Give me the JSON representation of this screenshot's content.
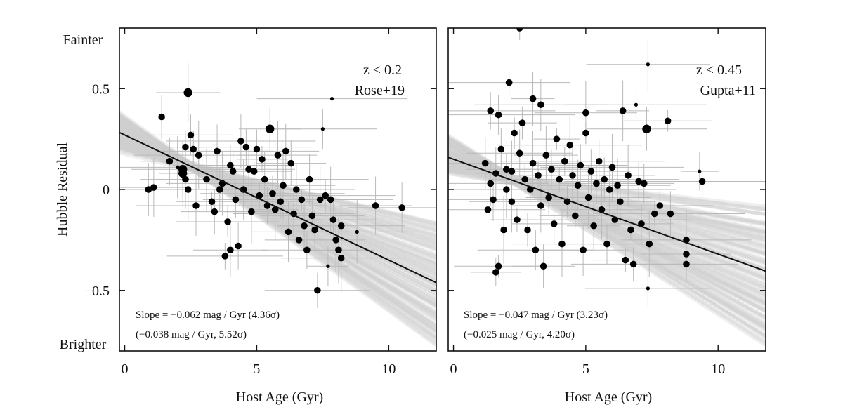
{
  "chart_data": [
    {
      "type": "scatter",
      "redshift_label": "z < 0.2",
      "sample_label": "Rose+19",
      "xlabel": "Host Age (Gyr)",
      "ylabel": "Hubble Residual",
      "y_top_label": "Fainter",
      "y_bottom_label": "Brighter",
      "xlim": [
        -0.2,
        11.8
      ],
      "ylim": [
        -0.8,
        0.8
      ],
      "xticks": [
        0,
        5,
        10
      ],
      "xtick_labels": [
        "0",
        "5",
        "10"
      ],
      "yticks": [
        0.5,
        0,
        -0.5
      ],
      "ytick_labels": [
        "0.5",
        "0",
        "−0.5"
      ],
      "slope_text": "Slope = −0.062 mag / Gyr (4.36σ)",
      "slope_alt_text": "(−0.038 mag / Gyr, 5.52σ)",
      "fit": {
        "slope": -0.062,
        "intercept": 0.27
      },
      "band": {
        "slope_low": -0.095,
        "slope_high": -0.03,
        "intercept_low": 0.19,
        "intercept_high": 0.35
      },
      "points": [
        {
          "x": 0.9,
          "y": 0.0,
          "s": "m"
        },
        {
          "x": 1.1,
          "y": 0.01,
          "s": "m"
        },
        {
          "x": 1.4,
          "y": 0.36,
          "s": "m"
        },
        {
          "x": 1.7,
          "y": 0.14,
          "s": "m"
        },
        {
          "x": 2.0,
          "y": 0.11,
          "s": "s"
        },
        {
          "x": 2.2,
          "y": 0.1,
          "s": "l"
        },
        {
          "x": 2.2,
          "y": 0.08,
          "s": "l"
        },
        {
          "x": 2.3,
          "y": 0.21,
          "s": "m"
        },
        {
          "x": 2.3,
          "y": 0.05,
          "s": "m"
        },
        {
          "x": 2.4,
          "y": 0.0,
          "s": "m"
        },
        {
          "x": 2.4,
          "y": 0.48,
          "s": "l"
        },
        {
          "x": 2.5,
          "y": 0.27,
          "s": "m"
        },
        {
          "x": 2.6,
          "y": 0.2,
          "s": "m"
        },
        {
          "x": 2.7,
          "y": -0.08,
          "s": "m"
        },
        {
          "x": 2.8,
          "y": 0.17,
          "s": "m"
        },
        {
          "x": 3.1,
          "y": 0.05,
          "s": "m"
        },
        {
          "x": 3.3,
          "y": -0.06,
          "s": "m"
        },
        {
          "x": 3.4,
          "y": -0.11,
          "s": "m"
        },
        {
          "x": 3.5,
          "y": 0.19,
          "s": "m"
        },
        {
          "x": 3.6,
          "y": 0.0,
          "s": "m"
        },
        {
          "x": 3.7,
          "y": 0.03,
          "s": "m"
        },
        {
          "x": 3.8,
          "y": -0.33,
          "s": "m"
        },
        {
          "x": 3.9,
          "y": -0.16,
          "s": "m"
        },
        {
          "x": 4.0,
          "y": 0.12,
          "s": "m"
        },
        {
          "x": 4.0,
          "y": -0.3,
          "s": "m"
        },
        {
          "x": 4.1,
          "y": 0.09,
          "s": "m"
        },
        {
          "x": 4.2,
          "y": -0.05,
          "s": "m"
        },
        {
          "x": 4.3,
          "y": -0.28,
          "s": "m"
        },
        {
          "x": 4.4,
          "y": 0.24,
          "s": "m"
        },
        {
          "x": 4.5,
          "y": 0.0,
          "s": "m"
        },
        {
          "x": 4.6,
          "y": 0.21,
          "s": "m"
        },
        {
          "x": 4.7,
          "y": 0.1,
          "s": "m"
        },
        {
          "x": 4.8,
          "y": -0.11,
          "s": "m"
        },
        {
          "x": 4.9,
          "y": 0.09,
          "s": "m"
        },
        {
          "x": 5.0,
          "y": 0.2,
          "s": "m"
        },
        {
          "x": 5.1,
          "y": -0.03,
          "s": "m"
        },
        {
          "x": 5.2,
          "y": 0.15,
          "s": "m"
        },
        {
          "x": 5.3,
          "y": 0.05,
          "s": "m"
        },
        {
          "x": 5.4,
          "y": -0.08,
          "s": "m"
        },
        {
          "x": 5.5,
          "y": 0.3,
          "s": "l"
        },
        {
          "x": 5.6,
          "y": -0.02,
          "s": "m"
        },
        {
          "x": 5.7,
          "y": -0.1,
          "s": "m"
        },
        {
          "x": 5.8,
          "y": 0.17,
          "s": "m"
        },
        {
          "x": 5.9,
          "y": -0.06,
          "s": "m"
        },
        {
          "x": 6.0,
          "y": 0.02,
          "s": "m"
        },
        {
          "x": 6.1,
          "y": 0.19,
          "s": "m"
        },
        {
          "x": 6.2,
          "y": -0.21,
          "s": "m"
        },
        {
          "x": 6.3,
          "y": 0.13,
          "s": "m"
        },
        {
          "x": 6.4,
          "y": -0.12,
          "s": "m"
        },
        {
          "x": 6.5,
          "y": 0.0,
          "s": "m"
        },
        {
          "x": 6.6,
          "y": -0.25,
          "s": "m"
        },
        {
          "x": 6.7,
          "y": -0.05,
          "s": "m"
        },
        {
          "x": 6.8,
          "y": -0.18,
          "s": "m"
        },
        {
          "x": 6.9,
          "y": -0.3,
          "s": "m"
        },
        {
          "x": 7.0,
          "y": 0.05,
          "s": "m"
        },
        {
          "x": 7.1,
          "y": -0.13,
          "s": "m"
        },
        {
          "x": 7.2,
          "y": -0.2,
          "s": "m"
        },
        {
          "x": 7.3,
          "y": -0.5,
          "s": "m"
        },
        {
          "x": 7.4,
          "y": -0.05,
          "s": "m"
        },
        {
          "x": 7.5,
          "y": 0.3,
          "s": "s"
        },
        {
          "x": 7.6,
          "y": -0.03,
          "s": "m"
        },
        {
          "x": 7.7,
          "y": -0.38,
          "s": "s"
        },
        {
          "x": 7.8,
          "y": -0.05,
          "s": "m"
        },
        {
          "x": 7.85,
          "y": 0.45,
          "s": "s"
        },
        {
          "x": 7.9,
          "y": -0.15,
          "s": "m"
        },
        {
          "x": 8.0,
          "y": -0.25,
          "s": "m"
        },
        {
          "x": 8.1,
          "y": -0.3,
          "s": "m"
        },
        {
          "x": 8.2,
          "y": -0.34,
          "s": "m"
        },
        {
          "x": 8.2,
          "y": -0.18,
          "s": "m"
        },
        {
          "x": 8.8,
          "y": -0.21,
          "s": "s"
        },
        {
          "x": 9.5,
          "y": -0.08,
          "s": "m"
        },
        {
          "x": 10.5,
          "y": -0.09,
          "s": "m"
        }
      ]
    },
    {
      "type": "scatter",
      "redshift_label": "z < 0.45",
      "sample_label": "Gupta+11",
      "xlabel": "Host Age (Gyr)",
      "xlim": [
        -0.2,
        11.8
      ],
      "ylim": [
        -0.8,
        0.8
      ],
      "xticks": [
        0,
        5,
        10
      ],
      "xtick_labels": [
        "0",
        "5",
        "10"
      ],
      "slope_text": "Slope = −0.047 mag / Gyr (3.23σ)",
      "slope_alt_text": "(−0.025 mag / Gyr, 4.20σ)",
      "fit": {
        "slope": -0.047,
        "intercept": 0.15
      },
      "band": {
        "slope_low": -0.085,
        "slope_high": -0.015,
        "intercept_low": 0.08,
        "intercept_high": 0.24
      },
      "points": [
        {
          "x": 1.2,
          "y": 0.13,
          "s": "m"
        },
        {
          "x": 1.3,
          "y": -0.1,
          "s": "m"
        },
        {
          "x": 1.4,
          "y": 0.39,
          "s": "m"
        },
        {
          "x": 1.4,
          "y": 0.03,
          "s": "m"
        },
        {
          "x": 1.5,
          "y": -0.05,
          "s": "m"
        },
        {
          "x": 1.6,
          "y": 0.08,
          "s": "m"
        },
        {
          "x": 1.6,
          "y": -0.41,
          "s": "m"
        },
        {
          "x": 1.7,
          "y": 0.37,
          "s": "m"
        },
        {
          "x": 1.7,
          "y": -0.38,
          "s": "m"
        },
        {
          "x": 1.8,
          "y": 0.2,
          "s": "m"
        },
        {
          "x": 1.9,
          "y": -0.2,
          "s": "m"
        },
        {
          "x": 2.0,
          "y": 0.0,
          "s": "m"
        },
        {
          "x": 2.0,
          "y": 0.1,
          "s": "m"
        },
        {
          "x": 2.1,
          "y": 0.53,
          "s": "m"
        },
        {
          "x": 2.2,
          "y": 0.09,
          "s": "m"
        },
        {
          "x": 2.2,
          "y": -0.06,
          "s": "m"
        },
        {
          "x": 2.3,
          "y": 0.28,
          "s": "m"
        },
        {
          "x": 2.4,
          "y": -0.15,
          "s": "m"
        },
        {
          "x": 2.5,
          "y": 0.18,
          "s": "m"
        },
        {
          "x": 2.5,
          "y": 0.8,
          "s": "m"
        },
        {
          "x": 2.6,
          "y": 0.33,
          "s": "m"
        },
        {
          "x": 2.7,
          "y": 0.05,
          "s": "m"
        },
        {
          "x": 2.8,
          "y": -0.2,
          "s": "m"
        },
        {
          "x": 2.9,
          "y": 0.0,
          "s": "m"
        },
        {
          "x": 3.0,
          "y": 0.13,
          "s": "m"
        },
        {
          "x": 3.0,
          "y": 0.45,
          "s": "m"
        },
        {
          "x": 3.1,
          "y": -0.3,
          "s": "m"
        },
        {
          "x": 3.2,
          "y": 0.07,
          "s": "m"
        },
        {
          "x": 3.3,
          "y": -0.08,
          "s": "m"
        },
        {
          "x": 3.3,
          "y": 0.42,
          "s": "m"
        },
        {
          "x": 3.4,
          "y": -0.38,
          "s": "m"
        },
        {
          "x": 3.5,
          "y": 0.17,
          "s": "m"
        },
        {
          "x": 3.6,
          "y": -0.04,
          "s": "m"
        },
        {
          "x": 3.7,
          "y": 0.1,
          "s": "m"
        },
        {
          "x": 3.8,
          "y": -0.17,
          "s": "m"
        },
        {
          "x": 3.9,
          "y": 0.25,
          "s": "m"
        },
        {
          "x": 4.0,
          "y": 0.05,
          "s": "m"
        },
        {
          "x": 4.1,
          "y": -0.27,
          "s": "m"
        },
        {
          "x": 4.2,
          "y": 0.14,
          "s": "m"
        },
        {
          "x": 4.3,
          "y": -0.06,
          "s": "m"
        },
        {
          "x": 4.4,
          "y": 0.22,
          "s": "m"
        },
        {
          "x": 4.5,
          "y": 0.07,
          "s": "m"
        },
        {
          "x": 4.6,
          "y": -0.13,
          "s": "m"
        },
        {
          "x": 4.7,
          "y": 0.02,
          "s": "m"
        },
        {
          "x": 4.8,
          "y": 0.12,
          "s": "m"
        },
        {
          "x": 4.9,
          "y": -0.3,
          "s": "m"
        },
        {
          "x": 5.0,
          "y": 0.28,
          "s": "m"
        },
        {
          "x": 5.0,
          "y": 0.38,
          "s": "m"
        },
        {
          "x": 5.1,
          "y": -0.04,
          "s": "m"
        },
        {
          "x": 5.2,
          "y": 0.09,
          "s": "m"
        },
        {
          "x": 5.3,
          "y": -0.18,
          "s": "m"
        },
        {
          "x": 5.4,
          "y": 0.03,
          "s": "m"
        },
        {
          "x": 5.5,
          "y": 0.14,
          "s": "m"
        },
        {
          "x": 5.6,
          "y": -0.1,
          "s": "m"
        },
        {
          "x": 5.7,
          "y": 0.05,
          "s": "m"
        },
        {
          "x": 5.8,
          "y": -0.27,
          "s": "m"
        },
        {
          "x": 5.9,
          "y": 0.0,
          "s": "m"
        },
        {
          "x": 6.0,
          "y": 0.11,
          "s": "m"
        },
        {
          "x": 6.1,
          "y": -0.15,
          "s": "m"
        },
        {
          "x": 6.2,
          "y": 0.02,
          "s": "m"
        },
        {
          "x": 6.3,
          "y": -0.06,
          "s": "m"
        },
        {
          "x": 6.4,
          "y": 0.39,
          "s": "m"
        },
        {
          "x": 6.5,
          "y": -0.35,
          "s": "m"
        },
        {
          "x": 6.6,
          "y": 0.07,
          "s": "m"
        },
        {
          "x": 6.7,
          "y": -0.2,
          "s": "m"
        },
        {
          "x": 6.8,
          "y": -0.37,
          "s": "m"
        },
        {
          "x": 6.9,
          "y": 0.42,
          "s": "s"
        },
        {
          "x": 7.0,
          "y": 0.04,
          "s": "m"
        },
        {
          "x": 7.1,
          "y": -0.17,
          "s": "m"
        },
        {
          "x": 7.2,
          "y": 0.03,
          "s": "m"
        },
        {
          "x": 7.3,
          "y": 0.3,
          "s": "l"
        },
        {
          "x": 7.35,
          "y": 0.62,
          "s": "s"
        },
        {
          "x": 7.4,
          "y": -0.27,
          "s": "m"
        },
        {
          "x": 7.35,
          "y": -0.49,
          "s": "s"
        },
        {
          "x": 7.6,
          "y": -0.12,
          "s": "m"
        },
        {
          "x": 7.8,
          "y": -0.08,
          "s": "m"
        },
        {
          "x": 8.1,
          "y": 0.34,
          "s": "m"
        },
        {
          "x": 8.2,
          "y": -0.12,
          "s": "m"
        },
        {
          "x": 8.8,
          "y": -0.25,
          "s": "m"
        },
        {
          "x": 8.8,
          "y": -0.32,
          "s": "m"
        },
        {
          "x": 8.8,
          "y": -0.37,
          "s": "m"
        },
        {
          "x": 9.4,
          "y": 0.04,
          "s": "m"
        },
        {
          "x": 9.3,
          "y": 0.09,
          "s": "s"
        }
      ]
    }
  ]
}
